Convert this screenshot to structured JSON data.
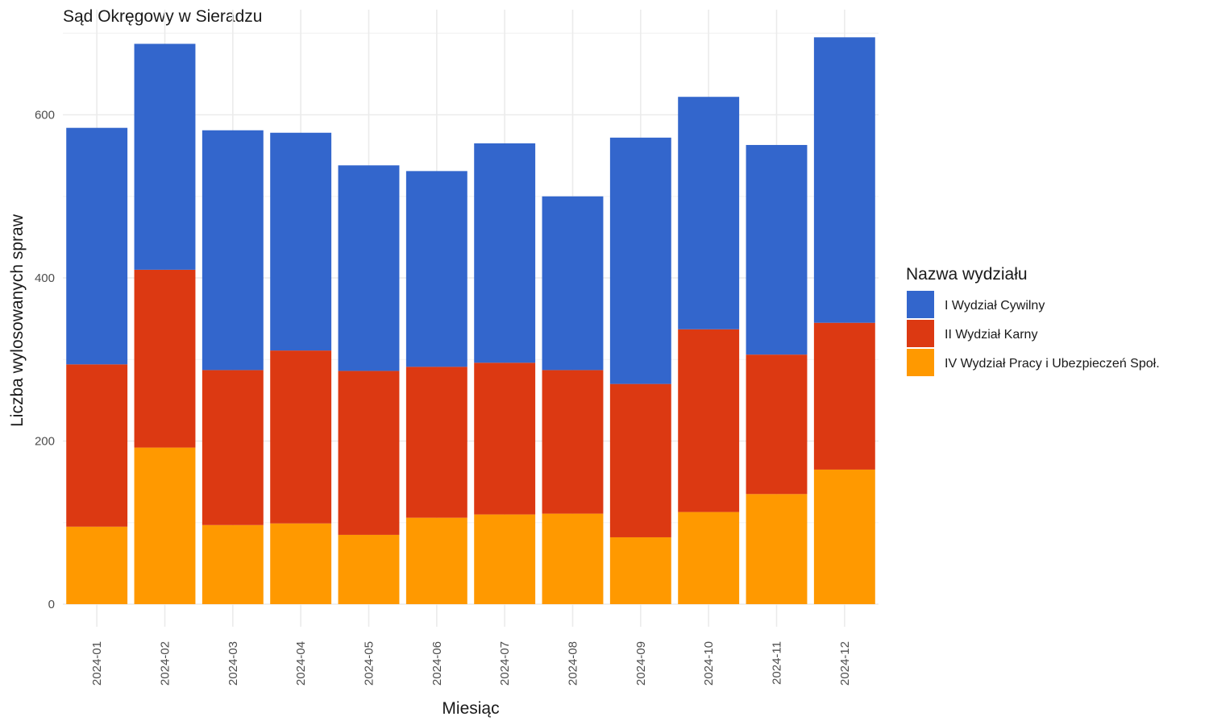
{
  "chart_data": {
    "type": "bar",
    "stacked": true,
    "title": "Sąd Okręgowy w Sieradzu",
    "xlabel": "Miesiąc",
    "ylabel": "Liczba wylosowanych spraw",
    "categories": [
      "2024-01",
      "2024-02",
      "2024-03",
      "2024-04",
      "2024-05",
      "2024-06",
      "2024-07",
      "2024-08",
      "2024-09",
      "2024-10",
      "2024-11",
      "2024-12"
    ],
    "ylim": [
      0,
      700
    ],
    "yticks": [
      0,
      200,
      400,
      600
    ],
    "grid": true,
    "legend": {
      "title": "Nazwa wydziału",
      "position": "right"
    },
    "series": [
      {
        "name": "IV Wydział Pracy i Ubezpieczeń Społ.",
        "color": "#ff9900",
        "values": [
          95,
          192,
          97,
          99,
          85,
          106,
          110,
          111,
          82,
          113,
          135,
          165
        ]
      },
      {
        "name": "II Wydział Karny",
        "color": "#dc3912",
        "values": [
          199,
          218,
          190,
          212,
          201,
          185,
          186,
          176,
          188,
          224,
          171,
          180
        ]
      },
      {
        "name": "I Wydział Cywilny",
        "color": "#3366cc",
        "values": [
          290,
          277,
          294,
          267,
          252,
          240,
          269,
          213,
          302,
          285,
          257,
          350
        ]
      }
    ],
    "legend_order": [
      "I Wydział Cywilny",
      "II Wydział Karny",
      "IV Wydział Pracy i Ubezpieczeń Społ."
    ]
  }
}
